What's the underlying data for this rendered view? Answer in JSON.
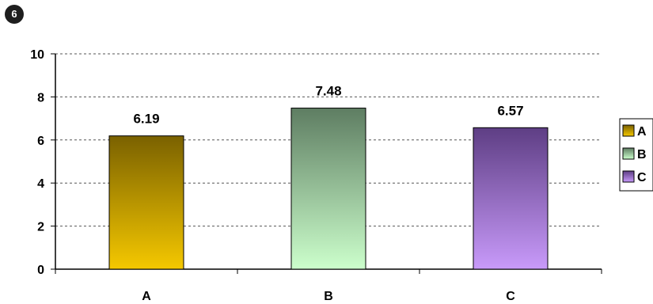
{
  "badge": {
    "number": "6"
  },
  "chart_data": {
    "type": "bar",
    "title": "",
    "xlabel": "",
    "ylabel": "",
    "categories": [
      "A",
      "B",
      "C"
    ],
    "values": [
      6.19,
      7.48,
      6.57
    ],
    "data_labels": [
      "6.19",
      "7.48",
      "6.57"
    ],
    "ylim": [
      0,
      10
    ],
    "yticks": [
      0,
      2,
      4,
      6,
      8,
      10
    ],
    "grid": true,
    "legend": {
      "placement": "right",
      "entries": [
        "A",
        "B",
        "C"
      ]
    },
    "colors": [
      {
        "top": "#7a6100",
        "bottom": "#f5c800"
      },
      {
        "top": "#5e7d62",
        "bottom": "#ccffcc"
      },
      {
        "top": "#5e3e84",
        "bottom": "#c89afa"
      }
    ]
  }
}
